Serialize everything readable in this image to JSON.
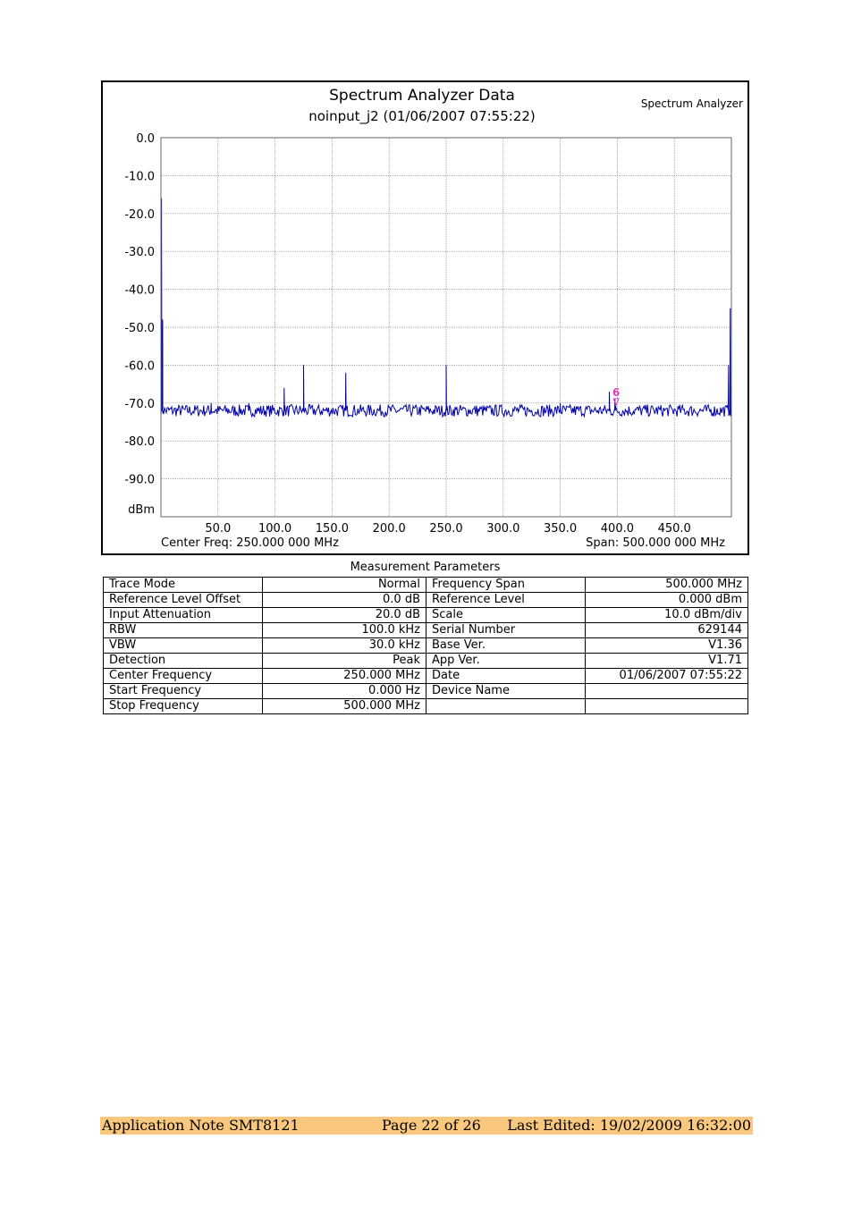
{
  "chart": {
    "title": "Spectrum Analyzer Data",
    "subtitle": "noinput_j2 (01/06/2007 07:55:22)",
    "brand": "Spectrum Analyzer",
    "y_unit_label": "dBm",
    "center_freq_label": "Center Freq: 250.000 000 MHz",
    "span_label": "Span: 500.000 000 MHz",
    "marker_label": "6"
  },
  "chart_data": {
    "type": "line",
    "title": "Spectrum Analyzer Data",
    "subtitle": "noinput_j2 (01/06/2007 07:55:22)",
    "xlim": [
      0,
      500
    ],
    "ylim": [
      -100,
      0
    ],
    "x_ticks": [
      "50.0",
      "100.0",
      "150.0",
      "200.0",
      "250.0",
      "300.0",
      "350.0",
      "400.0",
      "450.0"
    ],
    "y_ticks": [
      "0.0",
      "-10.0",
      "-20.0",
      "-30.0",
      "-40.0",
      "-50.0",
      "-60.0",
      "-70.0",
      "-80.0",
      "-90.0"
    ],
    "ylabel": "dBm",
    "grid": true,
    "series_color": "#0000aa",
    "marker": {
      "label": "6",
      "x": 399,
      "y": -70.5,
      "color": "#e040c0"
    },
    "noise_floor": -72,
    "peaks": [
      {
        "x": 0.5,
        "y": -16
      },
      {
        "x": 1.5,
        "y": -48
      },
      {
        "x": 44,
        "y": -70
      },
      {
        "x": 77,
        "y": -70
      },
      {
        "x": 108,
        "y": -66
      },
      {
        "x": 125,
        "y": -60
      },
      {
        "x": 162,
        "y": -62
      },
      {
        "x": 250,
        "y": -60
      },
      {
        "x": 350,
        "y": -70
      },
      {
        "x": 393,
        "y": -67
      },
      {
        "x": 398,
        "y": -69
      },
      {
        "x": 497.5,
        "y": -60
      },
      {
        "x": 499,
        "y": -45
      }
    ]
  },
  "params": {
    "title": "Measurement Parameters",
    "rows": [
      [
        "Trace Mode",
        "Normal",
        "Frequency Span",
        "500.000 MHz"
      ],
      [
        "Reference Level Offset",
        "0.0 dB",
        "Reference Level",
        "0.000  dBm"
      ],
      [
        "Input Attenuation",
        "20.0 dB",
        "Scale",
        "10.0  dBm/div"
      ],
      [
        "RBW",
        "100.0 kHz",
        "Serial Number",
        "629144"
      ],
      [
        "VBW",
        "30.0 kHz",
        "Base Ver.",
        "V1.36"
      ],
      [
        "Detection",
        "Peak",
        "App Ver.",
        "V1.71"
      ],
      [
        "Center Frequency",
        "250.000 MHz",
        "Date",
        "01/06/2007 07:55:22"
      ],
      [
        "Start Frequency",
        "0.000 Hz",
        "Device Name",
        ""
      ],
      [
        "Stop Frequency",
        "500.000 MHz",
        "",
        ""
      ]
    ]
  },
  "footer": {
    "left": "Application Note SMT8121",
    "center": "Page 22 of 26",
    "right": "Last Edited: 19/02/2009 16:32:00",
    "highlight_color": "#f9c77e"
  }
}
